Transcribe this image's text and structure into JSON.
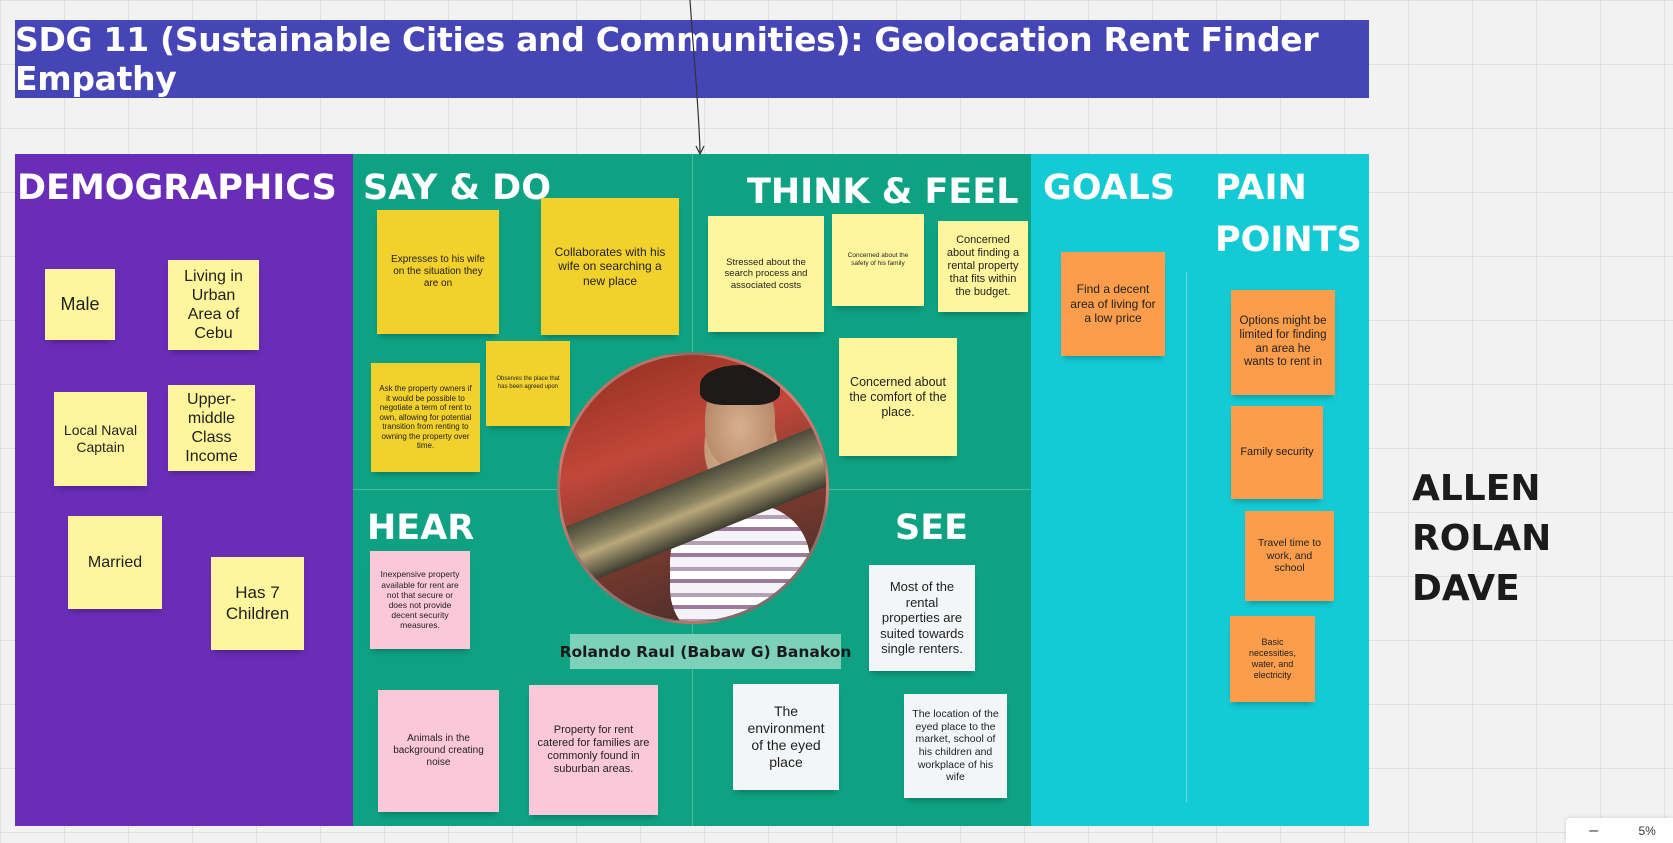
{
  "board": {
    "title": "SDG 11 (Sustainable Cities and Communities): Geolocation Rent Finder Empathy",
    "team_line1": "ALLEN",
    "team_line2": "ROLAN DAVE",
    "zoom": "5%"
  },
  "sections": {
    "demographics": "DEMOGRAPHICS",
    "say_do": "SAY & DO",
    "think_feel": "THINK & FEEL",
    "hear": "HEAR",
    "see": "SEE",
    "goals": "GOALS",
    "pain_points_1": "PAIN",
    "pain_points_2": "POINTS"
  },
  "persona": {
    "name": "Rolando Raul (Babaw G) Banakon"
  },
  "demographics": [
    "Male",
    "Living in Urban Area of Cebu",
    "Local Naval Captain",
    "Upper-middle Class Income",
    "Married",
    "Has 7 Children"
  ],
  "say_do": [
    "Expresses to his wife on the situation they are on",
    "Collaborates with his wife on searching a new place",
    "Ask the property owners if it would be possible to negotiate a term of rent to own, allowing for potential transition from renting to owning the property over time.",
    "Observes the place that has been agreed upon"
  ],
  "think_feel": [
    "Stressed about the search process and associated costs",
    "Concerned about the safety of his family",
    "Concerned about finding a rental property that fits within the budget.",
    "Concerned about the comfort of the place."
  ],
  "hear": [
    "Inexpensive property available for rent are not that secure or does not provide decent security measures.",
    "Animals in the background creating noise",
    "Property for rent catered for families are commonly found in suburban areas."
  ],
  "see": [
    "Most of the rental properties are suited towards single renters.",
    "The environment of the eyed place",
    "The location of the eyed place to the market, school of his children and workplace of his wife"
  ],
  "goals": [
    "Find a decent area of living for a low price"
  ],
  "pain_points": [
    "Options might be limited for finding an area he wants to rent in",
    "Family security",
    "Travel time to work, and school",
    "Basic necessities, water, and electricity"
  ],
  "colors": {
    "banner": "#4545b6",
    "demographics_panel": "#6a2db7",
    "green_panel": "#0ea283",
    "cyan_panel": "#14cad4",
    "sticky_light_yellow": "#fff59c",
    "sticky_yellow": "#f2d12c",
    "sticky_pink": "#fbc8d9",
    "sticky_white": "#f3f5f7",
    "sticky_orange": "#fb9d4a"
  }
}
